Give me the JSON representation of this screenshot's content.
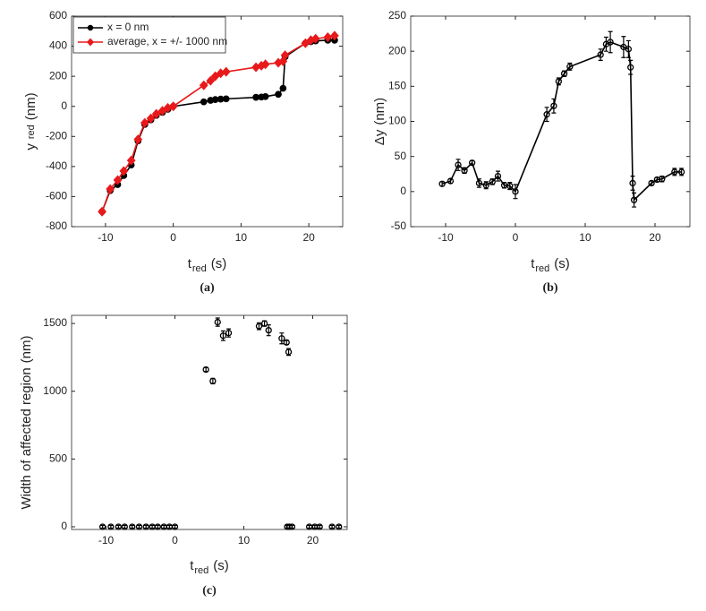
{
  "chart_data": [
    {
      "type": "line",
      "panel_label": "(a)",
      "xlabel": {
        "base": "t",
        "sub": "red",
        "rest": "(s)"
      },
      "ylabel": {
        "base": "y",
        "sub": "red",
        "rest": "(nm)"
      },
      "xlim": [
        -15,
        25
      ],
      "xticks": [
        -10,
        0,
        10,
        20
      ],
      "ylim": [
        -800,
        600
      ],
      "yticks": [
        -800,
        -600,
        -400,
        -200,
        0,
        200,
        400,
        600
      ],
      "legend": "upper left",
      "x": [
        -10.5,
        -9.3,
        -8.2,
        -7.3,
        -6.2,
        -5.2,
        -4.2,
        -3.3,
        -2.5,
        -1.6,
        -0.8,
        0,
        4.5,
        5.5,
        6.2,
        7.0,
        7.8,
        12.2,
        13.0,
        13.6,
        15.5,
        16.2,
        16.5,
        19.5,
        20.3,
        21.0,
        22.8,
        23.8
      ],
      "series": [
        {
          "name": "x = 0 nm",
          "color": "#000000",
          "marker": "circle",
          "filled": true,
          "line": true,
          "values": [
            -700,
            -560,
            -520,
            -460,
            -390,
            -230,
            -120,
            -90,
            -60,
            -40,
            -20,
            0,
            30,
            40,
            45,
            48,
            50,
            60,
            62,
            65,
            80,
            120,
            330,
            420,
            430,
            435,
            440,
            440
          ]
        },
        {
          "name": "average, x = +/- 1000 nm",
          "color": "#e8191b",
          "marker": "diamond",
          "filled": true,
          "line": true,
          "values": [
            -700,
            -550,
            -490,
            -430,
            -360,
            -220,
            -110,
            -80,
            -50,
            -30,
            -10,
            0,
            140,
            170,
            200,
            220,
            230,
            260,
            270,
            280,
            290,
            300,
            340,
            420,
            440,
            450,
            460,
            470
          ]
        }
      ]
    },
    {
      "type": "line",
      "panel_label": "(b)",
      "xlabel": {
        "base": "t",
        "sub": "red",
        "rest": "(s)"
      },
      "ylabel": {
        "base": "Δy",
        "sub": "",
        "rest": "(nm)"
      },
      "xlim": [
        -15,
        25
      ],
      "xticks": [
        -10,
        0,
        10,
        20
      ],
      "ylim": [
        -50,
        250
      ],
      "yticks": [
        -50,
        0,
        50,
        100,
        150,
        200,
        250
      ],
      "x": [
        -10.5,
        -9.3,
        -8.2,
        -7.3,
        -6.2,
        -5.2,
        -4.2,
        -3.3,
        -2.5,
        -1.6,
        -0.8,
        0,
        4.5,
        5.5,
        6.2,
        7.0,
        7.8,
        12.2,
        13.0,
        13.6,
        15.5,
        16.2,
        16.5,
        16.8,
        17.0,
        19.5,
        20.3,
        21.0,
        22.8,
        23.8
      ],
      "series": [
        {
          "color": "#000000",
          "marker": "circle",
          "filled": false,
          "line": true,
          "values": [
            11,
            15,
            38,
            30,
            41,
            12,
            9,
            14,
            22,
            9,
            8,
            0,
            110,
            122,
            157,
            168,
            178,
            195,
            210,
            213,
            206,
            203,
            177,
            12,
            -12,
            12,
            17,
            18,
            28,
            28
          ],
          "errors": [
            3,
            3,
            8,
            4,
            3,
            6,
            5,
            4,
            7,
            4,
            5,
            10,
            10,
            10,
            5,
            4,
            5,
            8,
            10,
            15,
            15,
            12,
            10,
            10,
            10,
            3,
            3,
            4,
            5,
            5
          ]
        }
      ]
    },
    {
      "type": "scatter",
      "panel_label": "(c)",
      "xlabel": {
        "base": "t",
        "sub": "red",
        "rest": "(s)"
      },
      "ylabel": {
        "base": "Width of affected region",
        "sub": "",
        "rest": "(nm)"
      },
      "xlim": [
        -15,
        25
      ],
      "xticks": [
        -10,
        0,
        10,
        20
      ],
      "ylim": [
        -20,
        1560
      ],
      "yticks": [
        0,
        500,
        1000,
        1500
      ],
      "x": [
        -10.5,
        -9.3,
        -8.2,
        -7.3,
        -6.2,
        -5.2,
        -4.2,
        -3.3,
        -2.5,
        -1.6,
        -0.8,
        0,
        4.5,
        5.5,
        6.2,
        7.0,
        7.8,
        12.2,
        13.0,
        13.6,
        15.5,
        16.2,
        16.5,
        16.3,
        16.6,
        17.0,
        19.5,
        20.3,
        21.0,
        22.8,
        23.8
      ],
      "series": [
        {
          "color": "#000000",
          "marker": "circle",
          "filled": false,
          "line": false,
          "values": [
            0,
            0,
            0,
            0,
            0,
            0,
            0,
            0,
            0,
            0,
            0,
            0,
            1160,
            1075,
            1510,
            1410,
            1430,
            1480,
            1500,
            1450,
            1390,
            1360,
            1290,
            0,
            0,
            0,
            0,
            0,
            0,
            0,
            0
          ],
          "errors": [
            10,
            10,
            10,
            10,
            10,
            10,
            10,
            10,
            10,
            10,
            10,
            10,
            15,
            20,
            30,
            35,
            30,
            25,
            20,
            40,
            40,
            15,
            25,
            10,
            10,
            10,
            10,
            10,
            10,
            10,
            10
          ]
        }
      ]
    }
  ]
}
